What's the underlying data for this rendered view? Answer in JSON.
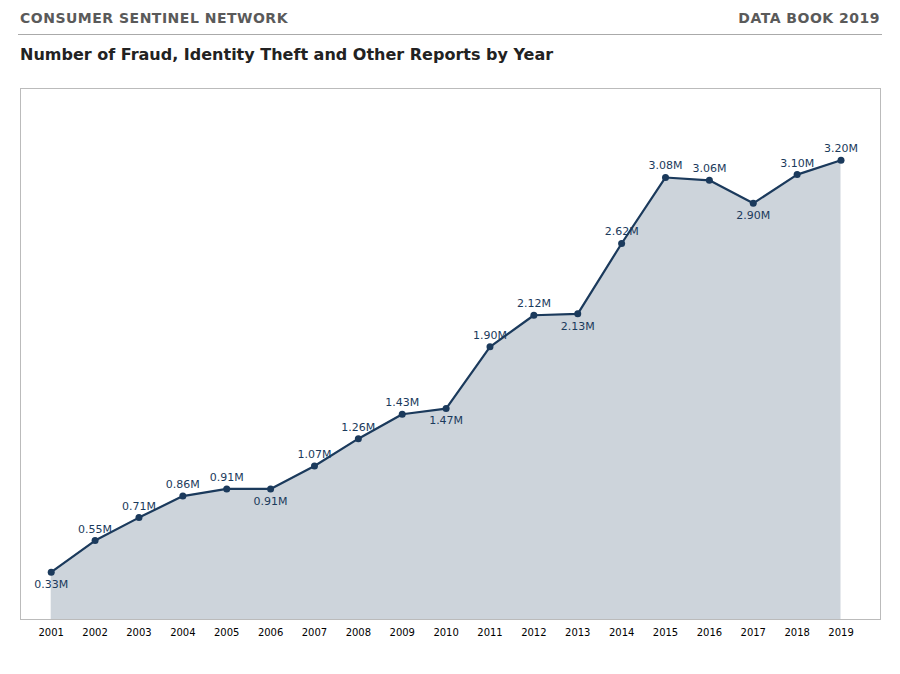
{
  "chart_data": {
    "type": "area",
    "title": "Number of Fraud, Identity Theft and Other Reports by Year",
    "annotations": [
      "CONSUMER SENTINEL NETWORK",
      "DATA BOOK 2019"
    ],
    "x": [
      2001,
      2002,
      2003,
      2004,
      2005,
      2006,
      2007,
      2008,
      2009,
      2010,
      2011,
      2012,
      2013,
      2014,
      2015,
      2016,
      2017,
      2018,
      2019
    ],
    "values": [
      0.33,
      0.55,
      0.71,
      0.86,
      0.91,
      0.91,
      1.07,
      1.26,
      1.43,
      1.47,
      1.9,
      2.12,
      2.13,
      2.62,
      3.08,
      3.06,
      2.9,
      3.1,
      3.2
    ],
    "value_labels": [
      "0.33M",
      "0.55M",
      "0.71M",
      "0.86M",
      "0.91M",
      "0.91M",
      "1.07M",
      "1.26M",
      "1.43M",
      "1.47M",
      "1.90M",
      "2.12M",
      "2.13M",
      "2.62M",
      "3.08M",
      "3.06M",
      "2.90M",
      "3.10M",
      "3.20M"
    ],
    "data_labels": true,
    "color": "#1b3a5c",
    "marker": "circle",
    "xlim": [
      2000.3,
      2019.9
    ],
    "xticks": [
      2001,
      2002,
      2003,
      2004,
      2005,
      2006,
      2007,
      2008,
      2009,
      2010,
      2011,
      2012,
      2013,
      2014,
      2015,
      2016,
      2017,
      2018,
      2019
    ],
    "ylim": [
      0,
      3.7
    ],
    "tick_labels": "x",
    "grid": false
  }
}
